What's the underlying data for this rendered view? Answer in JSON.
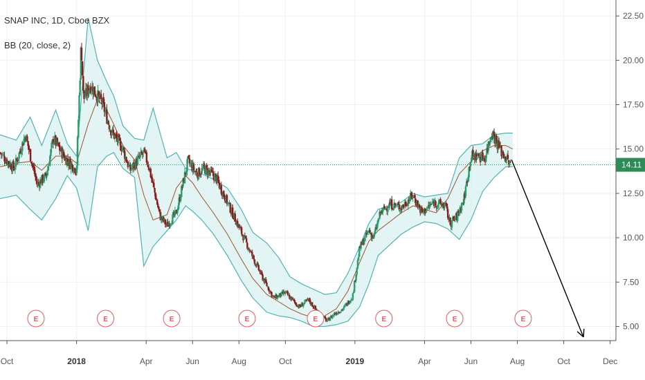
{
  "legend": {
    "symbol": "SNAP INC, 1D, Cboe BZX",
    "indicator": "BB (20, close, 2)"
  },
  "chart_data": {
    "type": "candlestick",
    "price_axis": {
      "ticks": [
        "22.50",
        "20.00",
        "17.50",
        "15.00",
        "12.50",
        "10.00",
        "7.50",
        "5.00"
      ],
      "tick_values": [
        22.5,
        20.0,
        17.5,
        15.0,
        12.5,
        10.0,
        7.5,
        5.0
      ],
      "range": [
        4.2,
        23.4
      ]
    },
    "time_axis": {
      "labels": [
        "Oct",
        "2018",
        "Apr",
        "Jun",
        "Aug",
        "Oct",
        "2019",
        "Apr",
        "Jun",
        "Aug",
        "Oct",
        "Dec"
      ],
      "bold": [
        false,
        true,
        false,
        false,
        false,
        false,
        true,
        false,
        false,
        false,
        false,
        false
      ],
      "months": [
        0,
        3,
        6,
        8,
        10,
        12,
        15,
        18,
        20,
        22,
        24,
        26
      ],
      "range_months": [
        -0.3,
        26.25
      ]
    },
    "last_price": {
      "value": 14.11,
      "label": "14.11",
      "color": "#2e8b57"
    },
    "colors": {
      "up": "#2a9d6f",
      "down": "#8b1a1a",
      "band": "#4fb3b3",
      "band_fill": "#d7efef",
      "basis": "#a0522d",
      "grid": "#eef0f3",
      "arrow": "#000000",
      "earnings": "#e25a5a"
    },
    "earnings_marker": "E",
    "earnings_months": [
      1.25,
      4.25,
      7.1,
      10.35,
      13.3,
      16.25,
      19.3,
      22.25
    ],
    "bollinger": {
      "period": 20,
      "source": "close",
      "stddev": 2,
      "months": [
        -0.3,
        0.4,
        1.0,
        1.5,
        2.1,
        2.6,
        3.0,
        3.5,
        3.9,
        4.3,
        4.6,
        5.0,
        5.5,
        5.9,
        6.3,
        6.9,
        7.3,
        7.7,
        8.0,
        8.4,
        8.9,
        9.5,
        10.1,
        10.6,
        11.2,
        11.7,
        12.2,
        12.7,
        13.2,
        13.7,
        14.2,
        14.7,
        15.2,
        15.6,
        16.0,
        16.5,
        17.0,
        17.5,
        18.0,
        18.5,
        19.0,
        19.5,
        20.0,
        20.5,
        21.0,
        21.5,
        21.8
      ],
      "upper": [
        15.8,
        15.5,
        16.8,
        15.2,
        17.2,
        15.3,
        14.6,
        22.4,
        20.0,
        18.8,
        18.0,
        16.3,
        15.6,
        15.5,
        17.3,
        14.5,
        14.8,
        13.9,
        13.8,
        13.6,
        13.3,
        12.8,
        11.6,
        10.3,
        9.7,
        8.9,
        7.8,
        7.4,
        7.1,
        6.8,
        6.9,
        8.0,
        9.5,
        10.8,
        11.6,
        11.8,
        12.0,
        12.5,
        12.3,
        12.4,
        12.5,
        14.5,
        15.2,
        15.3,
        15.8,
        15.9,
        15.9
      ],
      "lower": [
        12.2,
        12.4,
        11.6,
        11.0,
        12.2,
        13.5,
        12.8,
        10.4,
        14.0,
        14.6,
        14.8,
        13.9,
        13.4,
        8.4,
        9.5,
        10.4,
        11.0,
        11.8,
        11.5,
        11.0,
        10.2,
        9.0,
        7.6,
        6.6,
        5.8,
        5.6,
        5.5,
        5.3,
        5.0,
        5.0,
        5.1,
        5.3,
        6.1,
        7.4,
        9.0,
        9.6,
        10.2,
        10.6,
        10.9,
        10.8,
        10.5,
        9.9,
        11.0,
        12.6,
        13.4,
        14.0,
        14.0
      ],
      "basis": [
        14.0,
        14.2,
        14.3,
        13.8,
        14.6,
        14.6,
        14.2,
        16.4,
        17.8,
        17.2,
        16.4,
        15.2,
        14.4,
        12.4,
        11.0,
        11.3,
        12.8,
        13.5,
        13.1,
        12.3,
        11.4,
        10.2,
        8.8,
        7.7,
        6.8,
        6.4,
        6.0,
        5.7,
        5.5,
        5.6,
        6.0,
        7.0,
        8.6,
        9.8,
        10.4,
        10.9,
        11.4,
        11.8,
        11.6,
        11.4,
        12.2,
        13.6,
        14.3,
        14.9,
        15.2,
        15.2,
        15.0
      ]
    },
    "price_path": {
      "months": [
        -0.3,
        0.3,
        0.8,
        1.3,
        1.7,
        2.0,
        2.5,
        3.0,
        3.2,
        3.3,
        3.6,
        4.1,
        4.5,
        5.0,
        5.3,
        5.9,
        6.1,
        6.6,
        6.9,
        7.3,
        7.8,
        8.2,
        8.5,
        9.0,
        9.5,
        10.0,
        10.6,
        11.0,
        11.5,
        12.0,
        12.6,
        13.0,
        13.4,
        13.8,
        14.1,
        14.5,
        14.9,
        15.2,
        15.6,
        15.8,
        16.1,
        16.5,
        17.0,
        17.5,
        17.9,
        18.4,
        18.9,
        19.1,
        19.4,
        19.7,
        20.0,
        20.3,
        20.6,
        20.9,
        21.3,
        21.5,
        21.7
      ],
      "closes": [
        14.8,
        13.9,
        15.8,
        13.0,
        13.5,
        15.6,
        14.5,
        13.8,
        21.0,
        17.8,
        18.6,
        17.6,
        16.0,
        15.0,
        13.8,
        14.8,
        14.1,
        11.2,
        10.7,
        11.4,
        14.3,
        13.6,
        13.9,
        13.4,
        12.0,
        10.6,
        8.9,
        7.8,
        6.6,
        6.9,
        6.1,
        6.5,
        5.8,
        5.3,
        5.7,
        6.0,
        6.7,
        9.4,
        10.4,
        10.0,
        11.4,
        11.9,
        11.7,
        12.4,
        11.4,
        12.0,
        11.8,
        10.8,
        11.2,
        12.2,
        14.6,
        14.6,
        14.5,
        16.0,
        14.9,
        14.5,
        14.1
      ]
    },
    "projection": {
      "from": [
        21.75,
        14.4
      ],
      "to": [
        24.85,
        4.4
      ]
    }
  }
}
